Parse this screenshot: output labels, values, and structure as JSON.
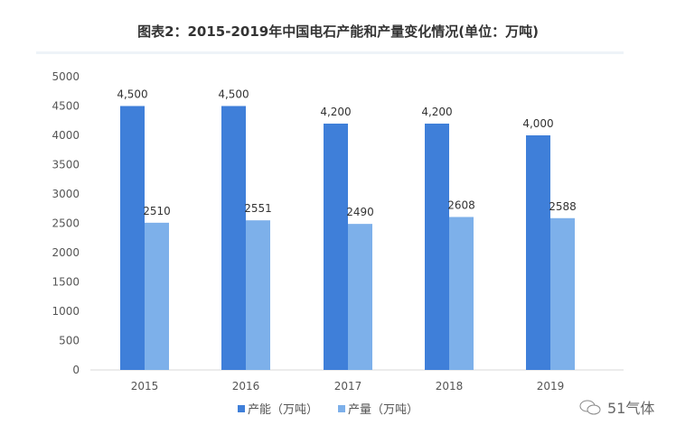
{
  "chart_data": {
    "type": "bar",
    "title": "图表2：2015-2019年中国电石产能和产量变化情况(单位：万吨)",
    "categories": [
      "2015",
      "2016",
      "2017",
      "2018",
      "2019"
    ],
    "series": [
      {
        "name": "产能（万吨）",
        "values": [
          4500,
          4500,
          4200,
          4200,
          4000
        ],
        "labels": [
          "4,500",
          "4,500",
          "4,200",
          "4,200",
          "4,000"
        ],
        "color": "#3f7fd9"
      },
      {
        "name": "产量（万吨）",
        "values": [
          2510,
          2551,
          2490,
          2608,
          2588
        ],
        "labels": [
          "2510",
          "2551",
          "2490",
          "2608",
          "2588"
        ],
        "color": "#7db0ea"
      }
    ],
    "ylim": [
      0,
      5000
    ],
    "yticks": [
      0,
      500,
      1000,
      1500,
      2000,
      2500,
      3000,
      3500,
      4000,
      4500,
      5000
    ],
    "grid": false,
    "legend_position": "bottom"
  },
  "watermark": "51气体"
}
